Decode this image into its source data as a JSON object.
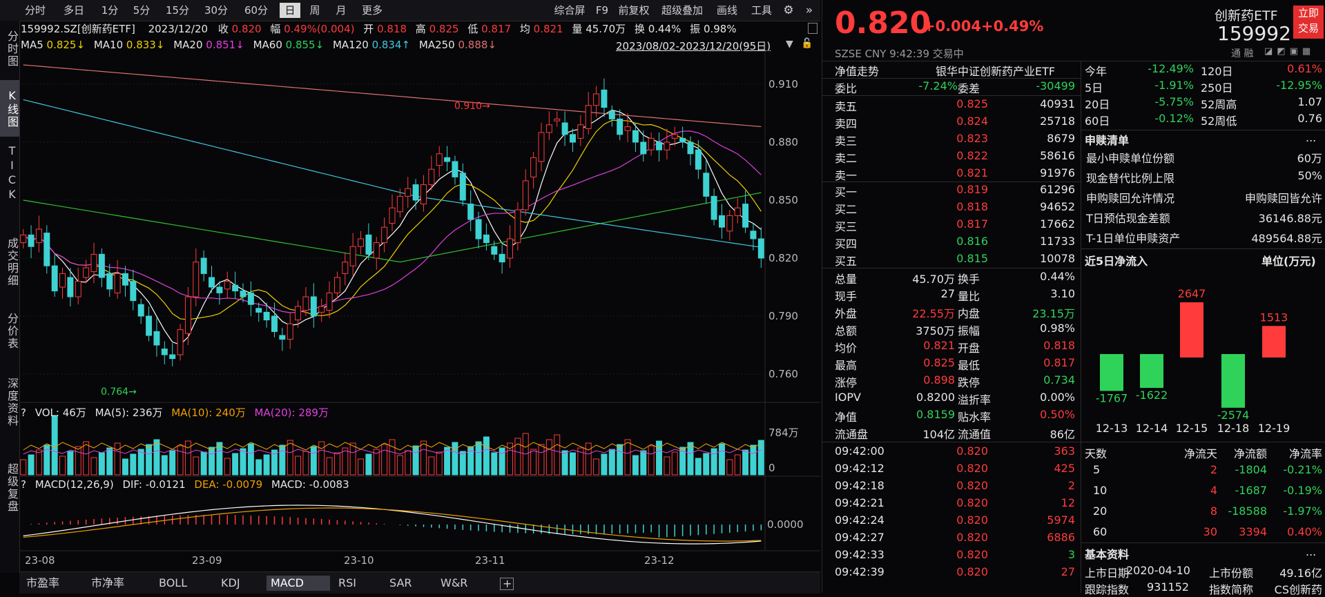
{
  "toolbar": {
    "tabs": [
      "分时",
      "多日",
      "1分",
      "5分",
      "15分",
      "30分",
      "60分",
      "日",
      "周",
      "月",
      "更多"
    ],
    "active_tab": "日",
    "right_items": [
      "综合屏",
      "F9",
      "前复权",
      "超级叠加",
      "画线",
      "工具"
    ]
  },
  "left_nav": [
    "分时图",
    "K线图",
    "TICK",
    "成交明细",
    "分价表",
    "深度资料",
    "超级复盘"
  ],
  "left_nav_active": "K线图",
  "quote_line": {
    "code_name": "159992.SZ[创新药ETF]",
    "date": "2023/12/20",
    "close_label": "收",
    "close": "0.820",
    "chg_label": "幅",
    "chg": "0.49%(0.004)",
    "open_label": "开",
    "open": "0.818",
    "high_label": "高",
    "high": "0.825",
    "low_label": "低",
    "low": "0.817",
    "avg_label": "均",
    "avg": "0.821",
    "vol_label": "量",
    "vol": "45.70万",
    "turn_label": "换",
    "turn": "0.44%",
    "amp_label": "振",
    "amp": "0.98%"
  },
  "ma_line": {
    "ma5_label": "MA5",
    "ma5": "0.825↓",
    "ma10_label": "MA10",
    "ma10": "0.833↓",
    "ma20_label": "MA20",
    "ma20": "0.851↓",
    "ma60_label": "MA60",
    "ma60": "0.855↓",
    "ma120_label": "MA120",
    "ma120": "0.834↑",
    "ma250_label": "MA250",
    "ma250": "0.888↓",
    "range": "2023/08/02-2023/12/20(95日)"
  },
  "price_axis": [
    "0.910",
    "0.880",
    "0.850",
    "0.820",
    "0.790",
    "0.760"
  ],
  "price_marks": {
    "high": "0.910",
    "low": "0.764"
  },
  "vol_header": {
    "q": "?",
    "vol": "VOL: 46万",
    "ma5": "MA(5): 236万",
    "ma10": "MA(10): 240万",
    "ma20": "MA(20): 289万"
  },
  "vol_axis": [
    "784万",
    "0"
  ],
  "macd_header": {
    "q": "?",
    "title": "MACD(12,26,9)",
    "dif": "DIF: -0.0121",
    "dea": "DEA: -0.0079",
    "macd": "MACD: -0.0083"
  },
  "macd_axis": [
    "0.0000"
  ],
  "x_axis": [
    "23-08",
    "23-09",
    "23-10",
    "23-11",
    "23-12"
  ],
  "bottom_tabs": [
    "市盈率",
    "市净率",
    "BOLL",
    "KDJ",
    "MACD",
    "RSI",
    "SAR",
    "W&R"
  ],
  "bottom_active": "MACD",
  "colors": {
    "up": "#ff3b3b",
    "down": "#3ed2d2",
    "ma5": "#ffffff",
    "ma10": "#f0d000",
    "ma20": "#e040e0",
    "ma60": "#30c030",
    "ma120": "#40c8e0",
    "ma250": "#e07070"
  },
  "right": {
    "price": "0.820",
    "change": "+0.004",
    "pct": "+0.49%",
    "name": "创新药ETF",
    "code": "159992",
    "trade_button": "立即交易",
    "meta": "SZSE  CNY  9:42:39  交易中",
    "meta_right": "通  融",
    "nav_trend": "净值走势",
    "fund_full": "银华中证创新药产业ETF",
    "wei_bi_label": "委比",
    "wei_bi": "-7.24%",
    "wei_cha_label": "委差",
    "wei_cha": "-30499",
    "asks": [
      {
        "l": "卖五",
        "p": "0.825",
        "v": "40931"
      },
      {
        "l": "卖四",
        "p": "0.824",
        "v": "25718"
      },
      {
        "l": "卖三",
        "p": "0.823",
        "v": "8679"
      },
      {
        "l": "卖二",
        "p": "0.822",
        "v": "58616"
      },
      {
        "l": "卖一",
        "p": "0.821",
        "v": "91976"
      }
    ],
    "bids": [
      {
        "l": "买一",
        "p": "0.819",
        "v": "61296"
      },
      {
        "l": "买二",
        "p": "0.818",
        "v": "94652"
      },
      {
        "l": "买三",
        "p": "0.817",
        "v": "17662"
      },
      {
        "l": "买四",
        "p": "0.816",
        "v": "11733"
      },
      {
        "l": "买五",
        "p": "0.815",
        "v": "10078"
      }
    ],
    "stats": [
      {
        "l1": "总量",
        "v1": "45.70万",
        "l2": "换手",
        "v2": "0.44%"
      },
      {
        "l1": "现手",
        "v1": "27",
        "l2": "量比",
        "v2": "3.10"
      },
      {
        "l1": "外盘",
        "v1": "22.55万",
        "l2": "内盘",
        "v2": "23.15万"
      },
      {
        "l1": "总额",
        "v1": "3750万",
        "l2": "振幅",
        "v2": "0.98%"
      },
      {
        "l1": "均价",
        "v1": "0.821",
        "l2": "开盘",
        "v2": "0.818"
      },
      {
        "l1": "最高",
        "v1": "0.825",
        "l2": "最低",
        "v2": "0.817"
      },
      {
        "l1": "涨停",
        "v1": "0.898",
        "l2": "跌停",
        "v2": "0.734"
      },
      {
        "l1": "IOPV",
        "v1": "0.8200",
        "l2": "溢折率",
        "v2": "0.00%"
      },
      {
        "l1": "净值",
        "v1": "0.8159",
        "l2": "贴水率",
        "v2": "0.50%"
      },
      {
        "l1": "流通盘",
        "v1": "104亿",
        "l2": "流通值",
        "v2": "86亿"
      }
    ],
    "ticks": [
      {
        "t": "09:42:00",
        "p": "0.820",
        "v": "363"
      },
      {
        "t": "09:42:12",
        "p": "0.820",
        "v": "425"
      },
      {
        "t": "09:42:18",
        "p": "0.820",
        "v": "2"
      },
      {
        "t": "09:42:21",
        "p": "0.820",
        "v": "12"
      },
      {
        "t": "09:42:24",
        "p": "0.820",
        "v": "5974"
      },
      {
        "t": "09:42:27",
        "p": "0.820",
        "v": "6886"
      },
      {
        "t": "09:42:33",
        "p": "0.820",
        "v": "3"
      },
      {
        "t": "09:42:39",
        "p": "0.820",
        "v": "27"
      }
    ],
    "perf": [
      {
        "l1": "今年",
        "v1": "-12.49%",
        "l2": "120日",
        "v2": "0.61%"
      },
      {
        "l1": "5日",
        "v1": "-1.91%",
        "l2": "250日",
        "v2": "-12.95%"
      },
      {
        "l1": "20日",
        "v1": "-5.75%",
        "l2": "52周高",
        "v2": "1.07"
      },
      {
        "l1": "60日",
        "v1": "-0.12%",
        "l2": "52周低",
        "v2": "0.76"
      }
    ],
    "sub_title": "申赎清单",
    "sub_more": "...",
    "sub_rows": [
      {
        "l": "最小申赎单位份额",
        "v": "60万"
      },
      {
        "l": "现金替代比例上限",
        "v": "50%"
      },
      {
        "l": "申购赎回允许情况",
        "v": "申购赎回皆允许"
      },
      {
        "l": "T日预估现金差额",
        "v": "36146.88元"
      },
      {
        "l": "T-1日单位申赎资产",
        "v": "489564.88元"
      }
    ],
    "flow_title": "近5日净流入",
    "flow_unit": "单位(万元)",
    "flow_days": [
      "12-13",
      "12-14",
      "12-15",
      "12-18",
      "12-19"
    ],
    "flow_vals": [
      -1767,
      -1622,
      2647,
      -2574,
      1513
    ],
    "flow_table_head": [
      "天数",
      "净流天",
      "净流额",
      "净流率"
    ],
    "flow_table": [
      {
        "d": "5",
        "n": "2",
        "a": "-1804",
        "r": "-0.21%"
      },
      {
        "d": "10",
        "n": "4",
        "a": "-1687",
        "r": "-0.19%"
      },
      {
        "d": "20",
        "n": "8",
        "a": "-18588",
        "r": "-1.97%"
      },
      {
        "d": "60",
        "n": "30",
        "a": "3394",
        "r": "0.40%"
      }
    ],
    "basic_title": "基本资料",
    "basic_more": "...",
    "basic_row": {
      "l1": "上市日期",
      "v1": "2020-04-10",
      "l2": "上市份额",
      "v2": "49.16亿"
    },
    "basic_row2": {
      "l1": "跟踪指数",
      "v1": "931152",
      "l2": "指数简称",
      "v2": "CS创新药"
    }
  }
}
